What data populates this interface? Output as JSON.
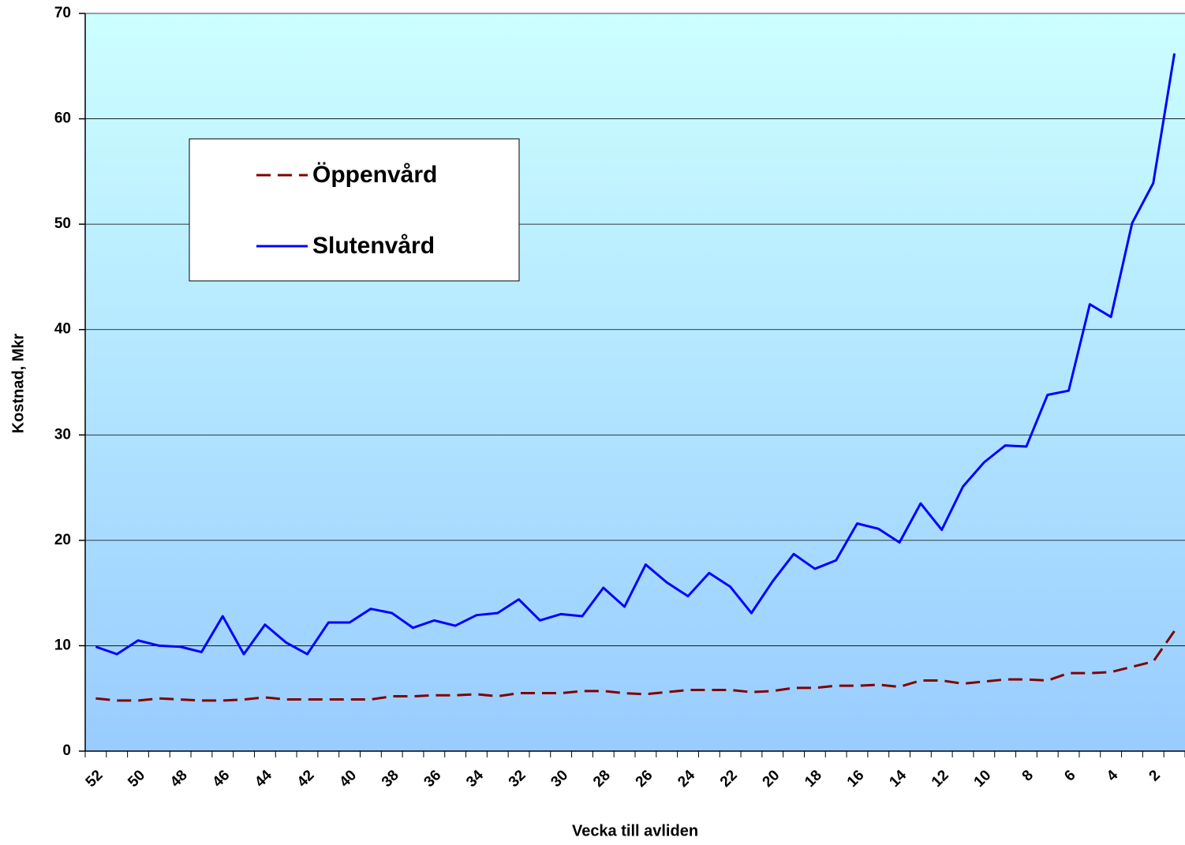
{
  "chart_data": {
    "type": "line",
    "xlabel": "Vecka till avliden",
    "ylabel": "Kostnad, Mkr",
    "categories": [
      "52",
      null,
      "50",
      null,
      "48",
      null,
      "46",
      null,
      "44",
      null,
      "42",
      null,
      "40",
      null,
      "38",
      null,
      "36",
      null,
      "34",
      null,
      "32",
      null,
      "30",
      null,
      "28",
      null,
      "26",
      null,
      "24",
      null,
      "22",
      null,
      "20",
      null,
      "18",
      null,
      "16",
      null,
      "14",
      null,
      "12",
      null,
      "10",
      null,
      "8",
      null,
      "6",
      null,
      "4",
      null,
      "2",
      null
    ],
    "series": [
      {
        "name": "Öppenvård",
        "color": "#800000",
        "dashed": true,
        "values": [
          5.0,
          4.8,
          4.8,
          5.0,
          4.9,
          4.8,
          4.8,
          4.9,
          5.1,
          4.9,
          4.9,
          4.9,
          4.9,
          4.9,
          5.2,
          5.2,
          5.3,
          5.3,
          5.4,
          5.2,
          5.5,
          5.5,
          5.5,
          5.7,
          5.7,
          5.5,
          5.4,
          5.6,
          5.8,
          5.8,
          5.8,
          5.6,
          5.7,
          6.0,
          6.0,
          6.2,
          6.2,
          6.3,
          6.1,
          6.7,
          6.7,
          6.4,
          6.6,
          6.8,
          6.8,
          6.7,
          7.4,
          7.4,
          7.5,
          8.0,
          8.5,
          11.4
        ]
      },
      {
        "name": "Slutenvård",
        "color": "#0000ff",
        "dashed": false,
        "values": [
          9.9,
          9.2,
          10.5,
          10.0,
          9.9,
          9.4,
          12.8,
          9.2,
          12.0,
          10.3,
          9.2,
          12.2,
          12.2,
          13.5,
          13.1,
          11.7,
          12.4,
          11.9,
          12.9,
          13.1,
          14.4,
          12.4,
          13.0,
          12.8,
          15.5,
          13.7,
          17.7,
          16.0,
          14.7,
          16.9,
          15.6,
          13.1,
          16.1,
          18.7,
          17.3,
          18.1,
          21.6,
          21.1,
          19.8,
          23.5,
          21.0,
          25.1,
          27.4,
          29.0,
          28.9,
          33.8,
          34.2,
          42.4,
          41.2,
          50.1,
          53.9,
          66.2
        ]
      }
    ],
    "ylim": [
      0,
      70
    ],
    "yticks": [
      0,
      10,
      20,
      30,
      40,
      50,
      60,
      70
    ],
    "grid": true
  }
}
